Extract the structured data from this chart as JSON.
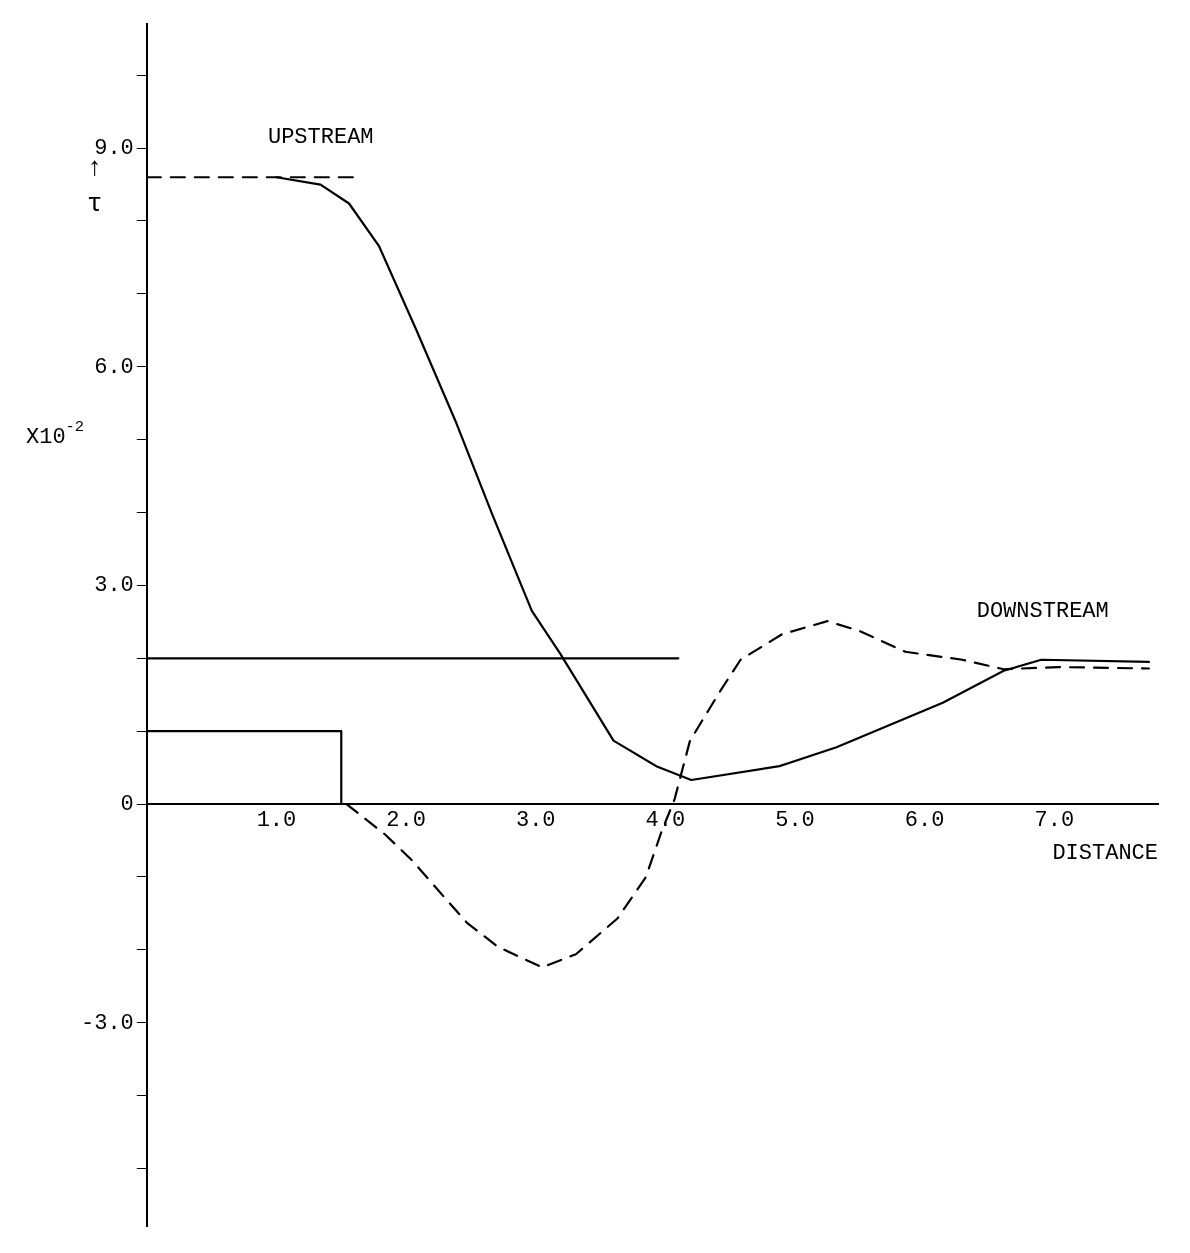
{
  "chart_data": {
    "type": "line",
    "xlabel": "DISTANCE",
    "ylabel": "↑ τ",
    "xlim": [
      0,
      7.8
    ],
    "ylim": [
      -5.8,
      10.7
    ],
    "xticks": [
      {
        "value": 1,
        "label": "1.0"
      },
      {
        "value": 2,
        "label": "2.0"
      },
      {
        "value": 3,
        "label": "3.0"
      },
      {
        "value": 4,
        "label": "4.0"
      },
      {
        "value": 5,
        "label": "5.0"
      },
      {
        "value": 6,
        "label": "6.0"
      },
      {
        "value": 7,
        "label": "7.0"
      }
    ],
    "yticks": [
      {
        "value": -5,
        "label": null
      },
      {
        "value": -4,
        "label": null
      },
      {
        "value": -3,
        "label": "-3.0"
      },
      {
        "value": -2,
        "label": null
      },
      {
        "value": -1,
        "label": null
      },
      0,
      {
        "value": 1,
        "label": null
      },
      {
        "value": 2,
        "label": null
      },
      {
        "value": 3,
        "label": "3.0"
      },
      {
        "value": 4,
        "label": null
      },
      {
        "value": 5,
        "label": null
      },
      {
        "value": 6,
        "label": "6.0"
      },
      {
        "value": 7,
        "label": null
      },
      {
        "value": 8,
        "label": null
      },
      {
        "value": 9,
        "label": "9.0"
      },
      {
        "value": 10,
        "label": null
      }
    ],
    "grid": false,
    "legend": false,
    "marker": "none",
    "series": [
      {
        "color": "#000000",
        "line_style": "dashed",
        "x": [
          0,
          1.6
        ],
        "values": [
          8.6,
          8.6
        ]
      },
      {
        "color": "#000000",
        "line_style": "solid",
        "x": [
          1.0,
          1.34,
          1.56,
          1.79,
          2.08,
          2.38,
          2.67,
          2.97,
          3.19,
          3.6,
          3.93,
          4.2,
          4.88,
          5.32,
          6.14,
          6.61,
          6.9,
          7.73
        ],
        "values": [
          8.6,
          8.5,
          8.24,
          7.66,
          6.5,
          5.26,
          3.95,
          2.65,
          2.06,
          0.87,
          0.52,
          0.33,
          0.52,
          0.78,
          1.39,
          1.83,
          1.98,
          1.95
        ]
      },
      {
        "color": "#000000",
        "line_style": "dashed",
        "x": [
          1.54,
          1.84,
          2.05,
          2.31,
          2.47,
          2.71,
          3.05,
          3.31,
          3.63,
          3.85,
          3.97,
          4.07,
          4.19,
          4.43,
          4.58,
          4.9,
          5.25,
          5.49,
          5.85,
          6.29,
          6.61,
          7.03,
          7.73
        ],
        "values": [
          0,
          -0.42,
          -0.78,
          -1.31,
          -1.63,
          -1.96,
          -2.24,
          -2.06,
          -1.57,
          -1.0,
          -0.38,
          0.06,
          0.87,
          1.57,
          1.98,
          2.33,
          2.51,
          2.38,
          2.09,
          1.98,
          1.85,
          1.88,
          1.86
        ]
      },
      {
        "color": "#000000",
        "line_style": "solid",
        "x": [
          0,
          4.1
        ],
        "values": [
          2.0,
          2.0
        ]
      },
      {
        "color": "#000000",
        "line_style": "solid",
        "x": [
          0,
          1.5,
          1.5
        ],
        "values": [
          1.0,
          1.0,
          0
        ]
      }
    ],
    "annotations": [
      "UPSTREAM",
      "DOWNSTREAM",
      "X10$^{-2}$"
    ]
  }
}
